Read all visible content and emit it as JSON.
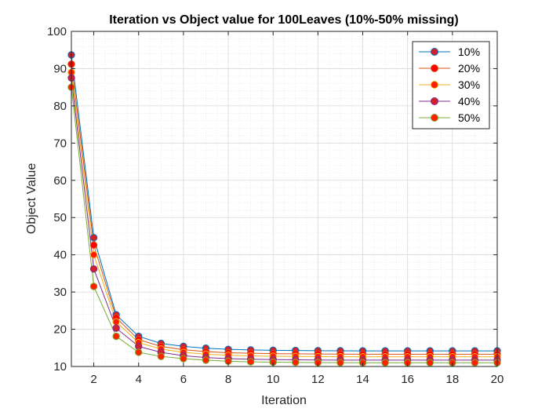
{
  "chart_data": {
    "type": "line",
    "title": "Iteration vs Object value for 100Leaves (10%-50% missing)",
    "xlabel": "Iteration",
    "ylabel": "Object Value",
    "xlim": [
      1,
      20
    ],
    "ylim": [
      10,
      100
    ],
    "xticks": [
      2,
      4,
      6,
      8,
      10,
      12,
      14,
      16,
      18,
      20
    ],
    "yticks": [
      10,
      20,
      30,
      40,
      50,
      60,
      70,
      80,
      90,
      100
    ],
    "grid": true,
    "minor_grid": true,
    "legend_position": "top-right",
    "x": [
      1,
      2,
      3,
      4,
      5,
      6,
      7,
      8,
      9,
      10,
      11,
      12,
      13,
      14,
      15,
      16,
      17,
      18,
      19,
      20
    ],
    "series": [
      {
        "name": "10%",
        "color": "#0072BD",
        "marker_face": "#D2202A",
        "values": [
          93.7,
          44.6,
          23.9,
          18.1,
          16.2,
          15.4,
          14.9,
          14.6,
          14.45,
          14.35,
          14.3,
          14.25,
          14.22,
          14.2,
          14.2,
          14.2,
          14.2,
          14.2,
          14.2,
          14.2
        ]
      },
      {
        "name": "20%",
        "color": "#D95319",
        "marker_face": "#FF0000",
        "values": [
          91.2,
          42.6,
          23.1,
          17.2,
          15.4,
          14.5,
          14.0,
          13.7,
          13.55,
          13.45,
          13.4,
          13.35,
          13.32,
          13.3,
          13.3,
          13.3,
          13.3,
          13.3,
          13.3,
          13.3
        ]
      },
      {
        "name": "30%",
        "color": "#EDB120",
        "marker_face": "#FF1A00",
        "values": [
          89.0,
          40.0,
          22.0,
          16.4,
          14.7,
          13.8,
          13.3,
          13.0,
          12.85,
          12.75,
          12.7,
          12.65,
          12.62,
          12.6,
          12.6,
          12.6,
          12.6,
          12.6,
          12.6,
          12.6
        ]
      },
      {
        "name": "40%",
        "color": "#7E2F8E",
        "marker_face": "#D2202A",
        "values": [
          87.5,
          36.2,
          20.3,
          15.4,
          13.8,
          12.9,
          12.4,
          12.1,
          11.95,
          11.85,
          11.8,
          11.75,
          11.72,
          11.7,
          11.7,
          11.7,
          11.7,
          11.7,
          11.7,
          11.7
        ]
      },
      {
        "name": "50%",
        "color": "#77AC30",
        "marker_face": "#FF2000",
        "values": [
          85.0,
          31.5,
          18.1,
          13.8,
          12.7,
          12.1,
          11.7,
          11.4,
          11.25,
          11.15,
          11.1,
          11.05,
          11.02,
          11.0,
          11.0,
          11.0,
          11.0,
          11.0,
          11.0,
          11.0
        ]
      }
    ]
  }
}
